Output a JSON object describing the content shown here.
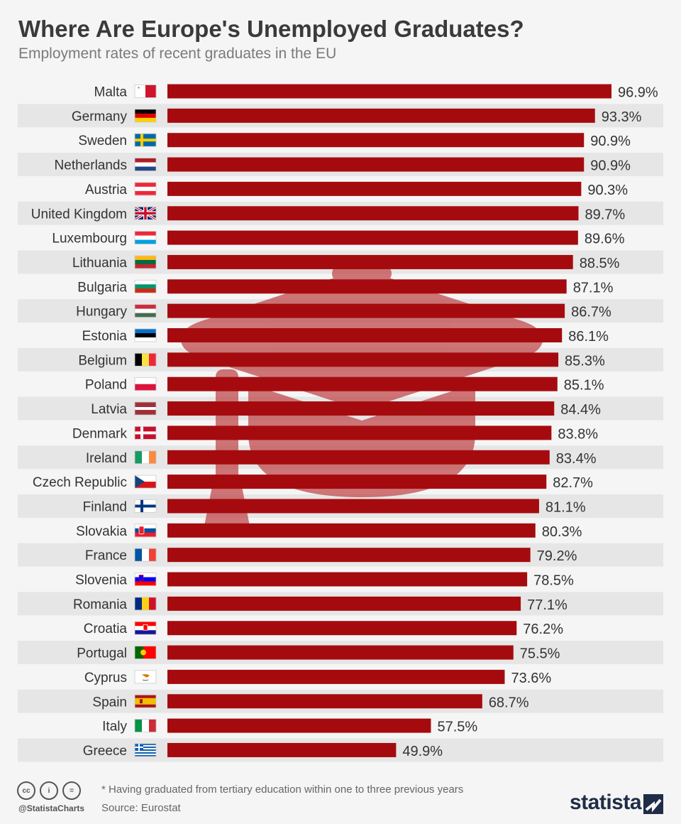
{
  "header": {
    "title": "Where Are Europe's Unemployed Graduates?",
    "subtitle": "Employment rates of recent graduates in the EU"
  },
  "colors": {
    "bar": "#a50b0e",
    "band": "#e6e6e6",
    "background": "#f5f5f5",
    "watermark": "#c04a4c"
  },
  "chart_data": {
    "type": "bar",
    "orientation": "horizontal",
    "categories": [
      "Malta",
      "Germany",
      "Sweden",
      "Netherlands",
      "Austria",
      "United Kingdom",
      "Luxembourg",
      "Lithuania",
      "Bulgaria",
      "Hungary",
      "Estonia",
      "Belgium",
      "Poland",
      "Latvia",
      "Denmark",
      "Ireland",
      "Czech Republic",
      "Finland",
      "Slovakia",
      "France",
      "Slovenia",
      "Romania",
      "Croatia",
      "Portugal",
      "Cyprus",
      "Spain",
      "Italy",
      "Greece"
    ],
    "values": [
      96.9,
      93.3,
      90.9,
      90.9,
      90.3,
      89.7,
      89.6,
      88.5,
      87.1,
      86.7,
      86.1,
      85.3,
      85.1,
      84.4,
      83.8,
      83.4,
      82.7,
      81.1,
      80.3,
      79.2,
      78.5,
      77.1,
      76.2,
      75.5,
      73.6,
      68.7,
      57.5,
      49.9
    ],
    "value_labels": [
      "96.9%",
      "93.3%",
      "90.9%",
      "90.9%",
      "90.3%",
      "89.7%",
      "89.6%",
      "88.5%",
      "87.1%",
      "86.7%",
      "86.1%",
      "85.3%",
      "85.1%",
      "84.4%",
      "83.8%",
      "83.4%",
      "82.7%",
      "81.1%",
      "80.3%",
      "79.2%",
      "78.5%",
      "77.1%",
      "76.2%",
      "75.5%",
      "73.6%",
      "68.7%",
      "57.5%",
      "49.9%"
    ],
    "flag_icons": [
      "malta-flag-icon",
      "germany-flag-icon",
      "sweden-flag-icon",
      "netherlands-flag-icon",
      "austria-flag-icon",
      "united-kingdom-flag-icon",
      "luxembourg-flag-icon",
      "lithuania-flag-icon",
      "bulgaria-flag-icon",
      "hungary-flag-icon",
      "estonia-flag-icon",
      "belgium-flag-icon",
      "poland-flag-icon",
      "latvia-flag-icon",
      "denmark-flag-icon",
      "ireland-flag-icon",
      "czech-republic-flag-icon",
      "finland-flag-icon",
      "slovakia-flag-icon",
      "france-flag-icon",
      "slovenia-flag-icon",
      "romania-flag-icon",
      "croatia-flag-icon",
      "portugal-flag-icon",
      "cyprus-flag-icon",
      "spain-flag-icon",
      "italy-flag-icon",
      "greece-flag-icon"
    ],
    "xlim": [
      0,
      100
    ],
    "grid": false,
    "legend": "none",
    "watermark_icon": "graduation-cap-icon"
  },
  "footer": {
    "handle": "@StatistaCharts",
    "note": "* Having graduated from tertiary education within one to three previous years",
    "source": "Source: Eurostat",
    "brand": "statista",
    "license_icons": [
      "cc-icon",
      "attribution-icon",
      "no-derivatives-icon"
    ],
    "license_glyphs": [
      "cc",
      "i",
      "="
    ],
    "brand_icon": "statista-logo-icon"
  }
}
